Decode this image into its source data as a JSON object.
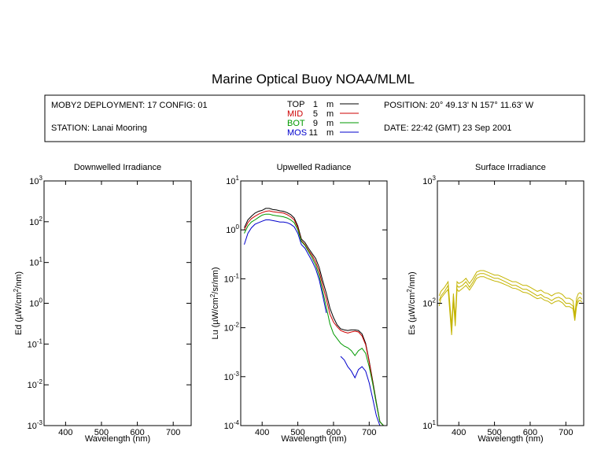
{
  "figure": {
    "title": "Marine Optical Buoy NOAA/MLML",
    "header": {
      "deployment": "MOBY2 DEPLOYMENT: 17 CONFIG: 01",
      "station": "STATION: Lanai Mooring",
      "position": "POSITION: 20° 49.13' N   157° 11.63' W",
      "date": "DATE: 22:42 (GMT) 23 Sep 2001",
      "legend": [
        {
          "name": "TOP",
          "depth": "1",
          "unit": "m",
          "color": "#000000"
        },
        {
          "name": "MID",
          "depth": "5",
          "unit": "m",
          "color": "#cc0000"
        },
        {
          "name": "BOT",
          "depth": "9",
          "unit": "m",
          "color": "#009900"
        },
        {
          "name": "MOS",
          "depth": "11",
          "unit": "m",
          "color": "#0000cc"
        }
      ]
    }
  },
  "chart_data": [
    {
      "type": "line",
      "title": "Downwelled Irradiance",
      "xlabel": "Wavelength (nm)",
      "ylabel": "Ed  (µW/cm²/nm)",
      "ylabel_parts": [
        "Ed  (µW/cm",
        "2",
        "/nm)"
      ],
      "xlim": [
        340,
        750
      ],
      "ylim": [
        0.001,
        1000
      ],
      "yscale": "log",
      "xticks": [
        400,
        500,
        600,
        700
      ],
      "yticks": [
        {
          "base": "10",
          "exp": "3"
        },
        {
          "base": "10",
          "exp": "2"
        },
        {
          "base": "10",
          "exp": "1"
        },
        {
          "base": "10",
          "exp": "0"
        },
        {
          "base": "10",
          "exp": "-1"
        },
        {
          "base": "10",
          "exp": "-2"
        },
        {
          "base": "10",
          "exp": "-3"
        }
      ],
      "series": []
    },
    {
      "type": "line",
      "title": "Upwelled Radiance",
      "xlabel": "Wavelength (nm)",
      "ylabel": "Lu  (µW/cm²/sr/nm)",
      "ylabel_parts": [
        "Lu  (µW/cm",
        "2",
        "/sr/nm)"
      ],
      "xlim": [
        340,
        750
      ],
      "ylim": [
        0.0001,
        10
      ],
      "yscale": "log",
      "xticks": [
        400,
        500,
        600,
        700
      ],
      "yticks": [
        {
          "base": "10",
          "exp": "1"
        },
        {
          "base": "10",
          "exp": "0"
        },
        {
          "base": "10",
          "exp": "-1"
        },
        {
          "base": "10",
          "exp": "-2"
        },
        {
          "base": "10",
          "exp": "-3"
        },
        {
          "base": "10",
          "exp": "-4"
        }
      ],
      "series": [
        {
          "name": "TOP",
          "color": "#000000",
          "x": [
            350,
            360,
            370,
            380,
            390,
            400,
            410,
            420,
            430,
            440,
            450,
            460,
            470,
            480,
            490,
            500,
            510,
            520,
            530,
            540,
            550,
            560,
            570,
            580,
            590,
            600,
            610,
            620,
            630,
            640,
            650,
            660,
            670,
            680,
            690,
            700,
            710,
            720,
            730,
            740,
            745
          ],
          "y": [
            1.1,
            1.6,
            1.9,
            2.2,
            2.4,
            2.5,
            2.75,
            2.75,
            2.6,
            2.55,
            2.45,
            2.4,
            2.25,
            2.05,
            1.75,
            1.2,
            0.65,
            0.55,
            0.42,
            0.33,
            0.26,
            0.17,
            0.09,
            0.05,
            0.025,
            0.016,
            0.0115,
            0.0095,
            0.009,
            0.0088,
            0.009,
            0.009,
            0.0088,
            0.0075,
            0.0048,
            0.0021,
            0.0008,
            0.0003,
            0.00012,
            0.0001,
            0.0001
          ]
        },
        {
          "name": "MID",
          "color": "#cc0000",
          "x": [
            350,
            360,
            370,
            380,
            390,
            400,
            410,
            420,
            430,
            440,
            450,
            460,
            470,
            480,
            490,
            500,
            510,
            520,
            530,
            540,
            550,
            560,
            570,
            580,
            590,
            600,
            610,
            620,
            630,
            640,
            650,
            660,
            670,
            680,
            690,
            700,
            710,
            720,
            730,
            740,
            745
          ],
          "y": [
            1.0,
            1.4,
            1.7,
            1.9,
            2.1,
            2.25,
            2.4,
            2.45,
            2.35,
            2.3,
            2.25,
            2.2,
            2.05,
            1.85,
            1.6,
            1.1,
            0.6,
            0.5,
            0.38,
            0.3,
            0.22,
            0.14,
            0.072,
            0.038,
            0.019,
            0.013,
            0.0105,
            0.0088,
            0.0082,
            0.0078,
            0.0082,
            0.0085,
            0.0082,
            0.0068,
            0.0045,
            0.002,
            0.00075,
            0.00028,
            0.00012,
            0.0001,
            0.0001
          ]
        },
        {
          "name": "BOT",
          "color": "#009900",
          "x": [
            350,
            360,
            370,
            380,
            390,
            400,
            410,
            420,
            430,
            440,
            450,
            460,
            470,
            480,
            490,
            500,
            510,
            520,
            530,
            540,
            550,
            560,
            570,
            580,
            590,
            600,
            610,
            620,
            630,
            640,
            650,
            660,
            670,
            680,
            690,
            700,
            710,
            720,
            730,
            740,
            745
          ],
          "y": [
            0.85,
            1.2,
            1.45,
            1.6,
            1.8,
            2.0,
            2.1,
            2.1,
            2.0,
            1.95,
            1.9,
            1.85,
            1.75,
            1.6,
            1.4,
            1.0,
            0.58,
            0.48,
            0.36,
            0.27,
            0.19,
            0.115,
            0.055,
            0.026,
            0.012,
            0.0075,
            0.006,
            0.0048,
            0.0042,
            0.0039,
            0.0034,
            0.0027,
            0.0034,
            0.0038,
            0.003,
            0.0016,
            0.0007,
            0.00028,
            0.00012,
            0.0001,
            0.0001
          ]
        },
        {
          "name": "MOS",
          "color": "#0000cc",
          "x": [
            350,
            360,
            370,
            380,
            390,
            400,
            410,
            420,
            430,
            440,
            450,
            460,
            470,
            480,
            490,
            500,
            510,
            520,
            530,
            540,
            550,
            560,
            570,
            580
          ],
          "y": [
            0.5,
            0.85,
            1.1,
            1.3,
            1.4,
            1.5,
            1.6,
            1.6,
            1.55,
            1.5,
            1.45,
            1.45,
            1.4,
            1.3,
            1.15,
            0.85,
            0.5,
            0.42,
            0.31,
            0.23,
            0.16,
            0.095,
            0.045,
            0.02
          ]
        },
        {
          "name": "MOS",
          "color": "#0000cc",
          "x": [
            620,
            630,
            640,
            650,
            660,
            670,
            680,
            690,
            700,
            710,
            720,
            730,
            740,
            745
          ],
          "y": [
            0.0026,
            0.0022,
            0.0016,
            0.0013,
            0.00095,
            0.0014,
            0.0016,
            0.0013,
            0.00075,
            0.00035,
            0.00016,
            0.0001,
            0.0001,
            0.0001
          ]
        }
      ]
    },
    {
      "type": "line",
      "title": "Surface Irradiance",
      "xlabel": "Wavelength (nm)",
      "ylabel": "Es  (µW/cm²/nm)",
      "ylabel_parts": [
        "Es  (µW/cm",
        "2",
        "/nm)"
      ],
      "xlim": [
        340,
        750
      ],
      "ylim": [
        10,
        1000
      ],
      "yscale": "log",
      "xticks": [
        400,
        500,
        600,
        700
      ],
      "yticks": [
        {
          "base": "10",
          "exp": "3"
        },
        {
          "base": "10",
          "exp": "2"
        },
        {
          "base": "10",
          "exp": "1"
        }
      ],
      "series": [
        {
          "name": "",
          "color": "#c4b400",
          "x": [
            345,
            350,
            360,
            370,
            380,
            385,
            390,
            395,
            400,
            410,
            420,
            430,
            440,
            450,
            460,
            470,
            480,
            490,
            500,
            510,
            520,
            530,
            540,
            550,
            560,
            570,
            580,
            590,
            600,
            610,
            620,
            630,
            640,
            650,
            660,
            670,
            680,
            690,
            700,
            710,
            720,
            725,
            730,
            735,
            740,
            745
          ],
          "y": [
            105,
            115,
            125,
            140,
            60,
            115,
            70,
            140,
            135,
            140,
            150,
            135,
            150,
            170,
            175,
            175,
            170,
            165,
            160,
            160,
            155,
            150,
            145,
            140,
            140,
            135,
            130,
            130,
            125,
            120,
            115,
            118,
            112,
            110,
            105,
            110,
            112,
            108,
            100,
            100,
            95,
            75,
            100,
            110,
            112,
            108
          ]
        },
        {
          "name": "",
          "color": "#c4b400",
          "x": [
            345,
            350,
            360,
            370,
            380,
            385,
            390,
            395,
            400,
            410,
            420,
            430,
            440,
            450,
            460,
            470,
            480,
            490,
            500,
            510,
            520,
            530,
            540,
            550,
            560,
            570,
            580,
            590,
            600,
            610,
            620,
            630,
            640,
            650,
            660,
            670,
            680,
            690,
            700,
            710,
            720,
            725,
            730,
            735,
            740,
            745
          ],
          "y": [
            115,
            125,
            135,
            150,
            65,
            120,
            75,
            150,
            145,
            150,
            160,
            145,
            160,
            180,
            185,
            185,
            180,
            175,
            170,
            170,
            165,
            160,
            155,
            150,
            150,
            145,
            140,
            140,
            135,
            130,
            125,
            128,
            122,
            120,
            115,
            120,
            122,
            118,
            110,
            110,
            105,
            80,
            110,
            120,
            122,
            118
          ]
        },
        {
          "name": "",
          "color": "#c4b400",
          "x": [
            345,
            350,
            360,
            370,
            380,
            385,
            390,
            395,
            400,
            410,
            420,
            430,
            440,
            450,
            460,
            470,
            480,
            490,
            500,
            510,
            520,
            530,
            540,
            550,
            560,
            570,
            580,
            590,
            600,
            610,
            620,
            630,
            640,
            650,
            660,
            670,
            680,
            690,
            700,
            710,
            720,
            725,
            730,
            735,
            740,
            745
          ],
          "y": [
            95,
            110,
            120,
            130,
            55,
            105,
            65,
            130,
            125,
            132,
            140,
            128,
            142,
            160,
            165,
            165,
            160,
            156,
            152,
            150,
            146,
            142,
            138,
            133,
            132,
            128,
            123,
            122,
            118,
            113,
            109,
            111,
            106,
            104,
            99,
            103,
            105,
            101,
            94,
            94,
            90,
            72,
            94,
            104,
            106,
            102
          ]
        }
      ]
    }
  ]
}
